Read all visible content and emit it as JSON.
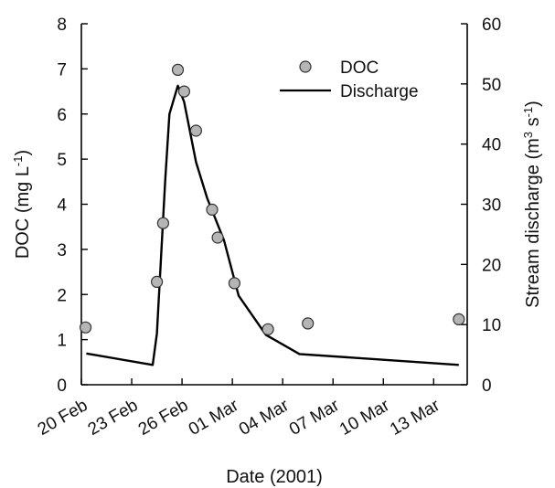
{
  "chart_data": {
    "type": "line",
    "title": "",
    "xlabel": "Date (2001)",
    "y_left": {
      "label": "DOC (mg L",
      "label_sup": "-1",
      "label_close": ")",
      "lim": [
        0,
        8
      ],
      "ticks": [
        0,
        1,
        2,
        3,
        4,
        5,
        6,
        7,
        8
      ]
    },
    "y_right": {
      "label": "Stream discharge (m",
      "label_sup1": "3",
      "label_mid": " s",
      "label_sup2": "-1",
      "label_close": ")",
      "lim": [
        0,
        60
      ],
      "ticks": [
        0,
        10,
        20,
        30,
        40,
        50,
        60
      ]
    },
    "x_axis": {
      "start": "2001-02-20",
      "end": "2001-03-15",
      "ticks": [
        {
          "date": "2001-02-20",
          "label": "20 Feb"
        },
        {
          "date": "2001-02-23",
          "label": "23 Feb"
        },
        {
          "date": "2001-02-26",
          "label": "26 Feb"
        },
        {
          "date": "2001-03-01",
          "label": "01 Mar"
        },
        {
          "date": "2001-03-04",
          "label": "04 Mar"
        },
        {
          "date": "2001-03-07",
          "label": "07 Mar"
        },
        {
          "date": "2001-03-10",
          "label": "10 Mar"
        },
        {
          "date": "2001-03-13",
          "label": "13 Mar"
        }
      ]
    },
    "grid": false,
    "legend": {
      "position": "top-right",
      "items": [
        {
          "label": "DOC",
          "marker": "circle"
        },
        {
          "label": "Discharge",
          "marker": "line"
        }
      ]
    },
    "series": [
      {
        "name": "DOC",
        "axis": "left",
        "style": "markers",
        "color": "#b5b5b5",
        "points": [
          {
            "x": "2001-02-20 06:00",
            "y": 1.27
          },
          {
            "x": "2001-02-24 12:00",
            "y": 2.28
          },
          {
            "x": "2001-02-24 21:00",
            "y": 3.58
          },
          {
            "x": "2001-02-25 18:00",
            "y": 6.98
          },
          {
            "x": "2001-02-26 03:00",
            "y": 6.5
          },
          {
            "x": "2001-02-26 20:00",
            "y": 5.63
          },
          {
            "x": "2001-02-27 19:00",
            "y": 3.88
          },
          {
            "x": "2001-02-28 03:00",
            "y": 3.26
          },
          {
            "x": "2001-03-01 03:00",
            "y": 2.25
          },
          {
            "x": "2001-03-03 03:00",
            "y": 1.23
          },
          {
            "x": "2001-03-05 12:00",
            "y": 1.36
          },
          {
            "x": "2001-03-14 12:00",
            "y": 1.45
          }
        ]
      },
      {
        "name": "Discharge",
        "axis": "right",
        "style": "line",
        "color": "#000000",
        "points": [
          {
            "x": "2001-02-20 07:00",
            "y": 5.2
          },
          {
            "x": "2001-02-24 06:00",
            "y": 3.3
          },
          {
            "x": "2001-02-24 12:00",
            "y": 8.5
          },
          {
            "x": "2001-02-25 00:00",
            "y": 34
          },
          {
            "x": "2001-02-25 06:00",
            "y": 45
          },
          {
            "x": "2001-02-25 18:00",
            "y": 49.7
          },
          {
            "x": "2001-02-26 03:00",
            "y": 47
          },
          {
            "x": "2001-02-26 20:00",
            "y": 37
          },
          {
            "x": "2001-02-27 12:00",
            "y": 31
          },
          {
            "x": "2001-02-28 12:00",
            "y": 24
          },
          {
            "x": "2001-03-01 09:00",
            "y": 14.8
          },
          {
            "x": "2001-03-03 00:00",
            "y": 8.3
          },
          {
            "x": "2001-03-05 00:00",
            "y": 5.1
          },
          {
            "x": "2001-03-14 12:00",
            "y": 3.3
          }
        ]
      }
    ]
  }
}
